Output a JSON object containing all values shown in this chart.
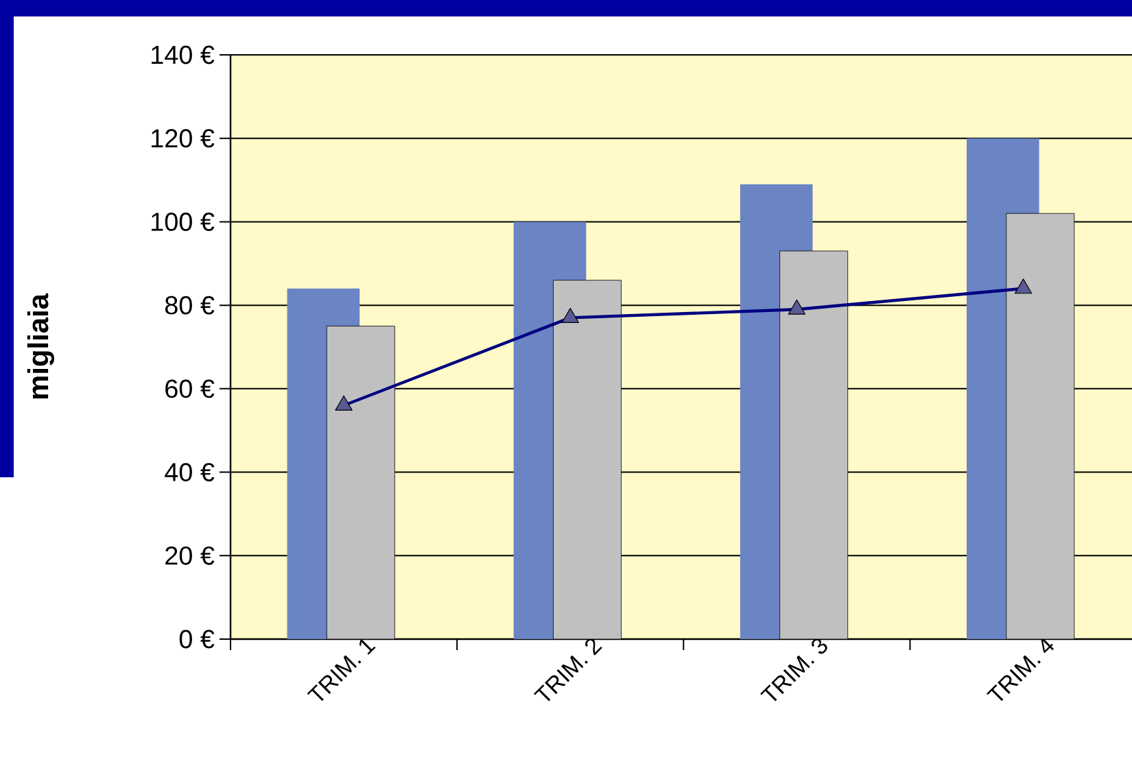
{
  "chart_data": {
    "type": "bar",
    "ylabel": "migliaia",
    "categories": [
      "TRIM. 1",
      "TRIM. 2",
      "TRIM. 3",
      "TRIM. 4"
    ],
    "series": [
      {
        "color": "#6a84c4",
        "values": [
          84,
          100,
          109,
          120
        ]
      },
      {
        "color": "#c0c0c0",
        "values": [
          75,
          86,
          93,
          102
        ]
      },
      {
        "type": "line",
        "color": "#000080",
        "marker": "triangle",
        "values": [
          56,
          77,
          79,
          84
        ]
      }
    ],
    "ylim": [
      0,
      140
    ],
    "yticks": [
      {
        "value": 0,
        "label": "0 €"
      },
      {
        "value": 20,
        "label": "20 €"
      },
      {
        "value": 40,
        "label": "40 €"
      },
      {
        "value": 60,
        "label": "60 €"
      },
      {
        "value": 80,
        "label": "80 €"
      },
      {
        "value": 100,
        "label": "100 €"
      },
      {
        "value": 120,
        "label": "120 €"
      },
      {
        "value": 140,
        "label": "140 €"
      }
    ],
    "grid": "y"
  }
}
